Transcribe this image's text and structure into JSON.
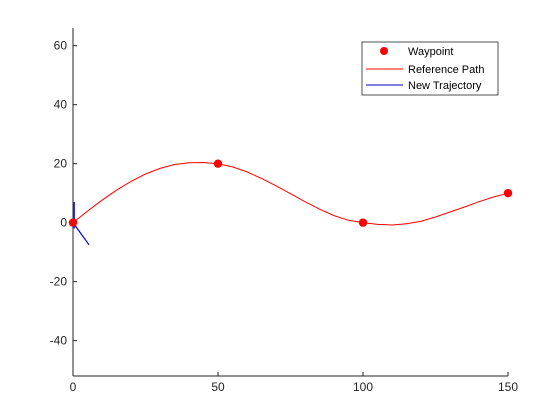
{
  "chart_data": {
    "type": "line",
    "title": "",
    "xlabel": "",
    "ylabel": "",
    "xlim": [
      0,
      150
    ],
    "ylim": [
      -52,
      66
    ],
    "xticks": [
      0,
      50,
      100,
      150
    ],
    "yticks": [
      -40,
      -20,
      0,
      20,
      40,
      60
    ],
    "grid": false,
    "legend_position": "top-right",
    "series": [
      {
        "name": "Waypoint",
        "kind": "markers",
        "color": "#ff0000",
        "points": [
          [
            0,
            0
          ],
          [
            50,
            20
          ],
          [
            100,
            0
          ],
          [
            150,
            10
          ]
        ]
      },
      {
        "name": "Reference Path",
        "kind": "line",
        "color": "#ff0000",
        "points": [
          [
            0,
            0
          ],
          [
            5,
            3.9
          ],
          [
            10,
            7.6
          ],
          [
            15,
            11.0
          ],
          [
            20,
            14.0
          ],
          [
            25,
            16.5
          ],
          [
            30,
            18.4
          ],
          [
            35,
            19.7
          ],
          [
            40,
            20.3
          ],
          [
            45,
            20.4
          ],
          [
            50,
            20.0
          ],
          [
            55,
            18.9
          ],
          [
            60,
            17.2
          ],
          [
            65,
            15.0
          ],
          [
            70,
            12.5
          ],
          [
            75,
            9.8
          ],
          [
            80,
            7.1
          ],
          [
            85,
            4.6
          ],
          [
            90,
            2.4
          ],
          [
            95,
            0.8
          ],
          [
            100,
            0
          ],
          [
            105,
            -0.6
          ],
          [
            110,
            -0.8
          ],
          [
            115,
            -0.4
          ],
          [
            120,
            0.5
          ],
          [
            125,
            1.9
          ],
          [
            130,
            3.6
          ],
          [
            135,
            5.3
          ],
          [
            140,
            7.1
          ],
          [
            145,
            8.7
          ],
          [
            150,
            10.0
          ]
        ]
      },
      {
        "name": "New Trajectory",
        "kind": "line",
        "color": "#0000cc",
        "segments": [
          [
            [
              0.4,
              7
            ],
            [
              0.4,
              -2
            ]
          ],
          [
            [
              0,
              0
            ],
            [
              5.5,
              -7.5
            ]
          ]
        ]
      }
    ]
  }
}
